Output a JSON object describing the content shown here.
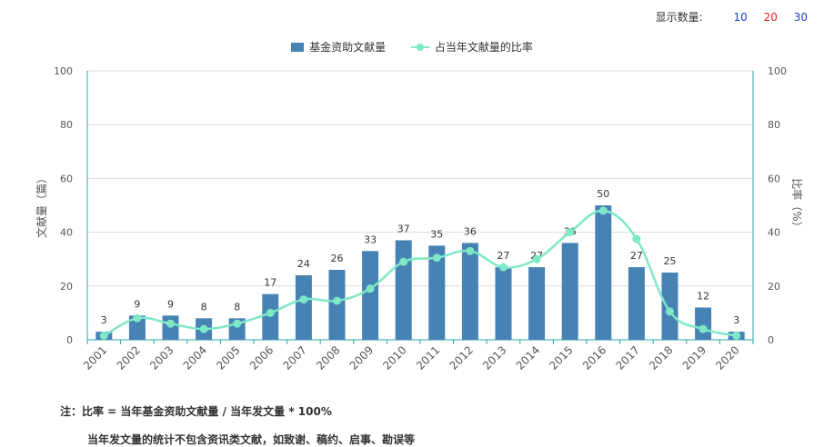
{
  "controls": {
    "display_label": "显示数量:",
    "options": [
      {
        "label": "10",
        "color": "#1a3fd0"
      },
      {
        "label": "20",
        "color": "#e02020"
      },
      {
        "label": "30",
        "color": "#1a3fd0"
      }
    ]
  },
  "notes": {
    "line1": "注：比率 = 当年基金资助文献量 / 当年发文量 * 100%",
    "line2": "当年发文量的统计不包含资讯类文献，如致谢、稿约、启事、勘误等"
  },
  "chart_data": {
    "type": "bar",
    "categories": [
      "2001",
      "2002",
      "2003",
      "2004",
      "2005",
      "2006",
      "2007",
      "2008",
      "2009",
      "2010",
      "2011",
      "2012",
      "2013",
      "2014",
      "2015",
      "2016",
      "2017",
      "2018",
      "2019",
      "2020"
    ],
    "series": [
      {
        "name": "基金资助文献量",
        "type": "bar",
        "axis": "left",
        "color": "#4682b4",
        "values": [
          3,
          9,
          9,
          8,
          8,
          17,
          24,
          26,
          33,
          37,
          35,
          36,
          27,
          27,
          36,
          50,
          27,
          25,
          12,
          3
        ],
        "data_labels": [
          "3",
          "9",
          "9",
          "8",
          "8",
          "17",
          "24",
          "26",
          "33",
          "37",
          "35",
          "36",
          "27",
          "27",
          "36",
          "50",
          "27",
          "25",
          "12",
          "3"
        ]
      },
      {
        "name": "占当年文献量的比率",
        "type": "line",
        "axis": "right",
        "color": "#7ee8c6",
        "values": [
          1.5,
          8,
          6,
          4,
          6,
          10,
          15,
          14.5,
          19,
          29,
          30.5,
          33,
          27,
          30,
          40,
          48,
          37.5,
          10.5,
          4,
          1.5
        ]
      }
    ],
    "ylabel_left": "文献量（篇）",
    "ylabel_right": "比率（%）",
    "ylim_left": [
      0,
      100
    ],
    "ylim_right": [
      0,
      100
    ],
    "yticks_left": [
      "0",
      "20",
      "40",
      "60",
      "80",
      "100"
    ],
    "yticks_right": [
      "0",
      "20",
      "40",
      "60",
      "80",
      "100"
    ],
    "grid": true,
    "legend_position": "top-center"
  }
}
